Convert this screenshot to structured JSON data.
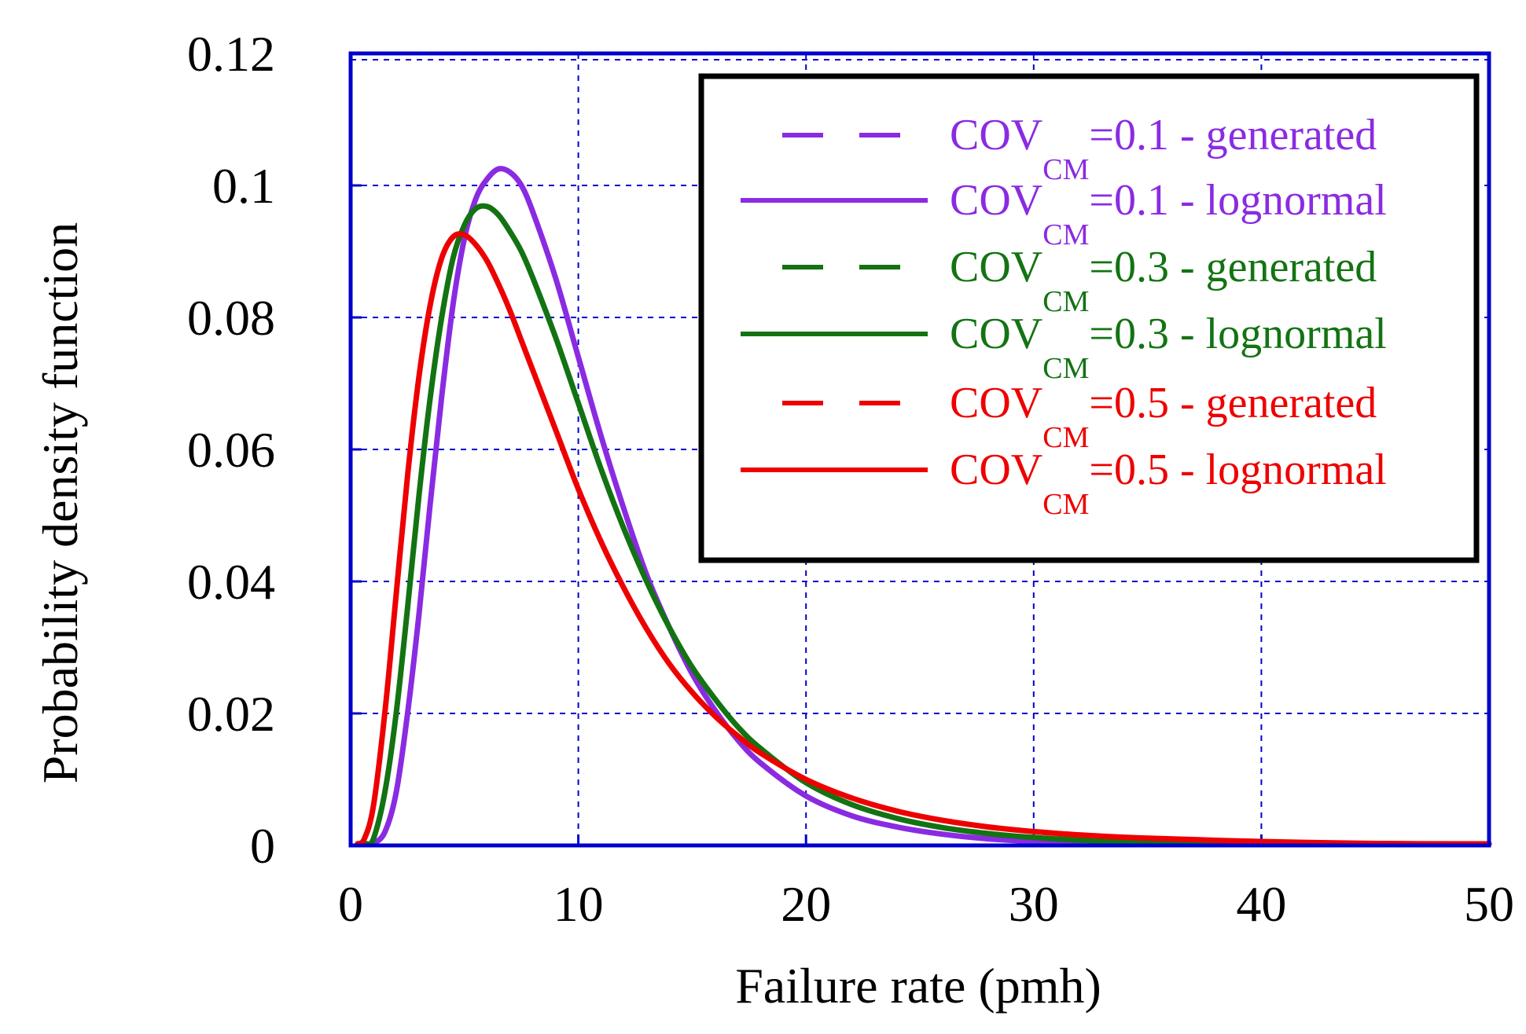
{
  "chart_data": {
    "type": "line",
    "title": "",
    "xlabel": "Failure rate (pmh)",
    "ylabel": "Probability density function",
    "xlim": [
      0,
      50
    ],
    "ylim": [
      0,
      0.12
    ],
    "x_ticks": [
      "0",
      "10",
      "20",
      "30",
      "40",
      "50"
    ],
    "y_ticks": [
      "0",
      "0.02",
      "0.04",
      "0.06",
      "0.08",
      "0.1",
      "0.12"
    ],
    "grid": true,
    "legend_position": "top-right",
    "series": [
      {
        "name": "COV_CM=0.1 - generated",
        "label_main": "COV",
        "label_sub": "CM",
        "label_rest": "=0.1 - generated",
        "style": "dashed",
        "color": "#8a2be2",
        "x": [
          1,
          1.5,
          2,
          2.5,
          3,
          3.5,
          4,
          4.5,
          5,
          5.5,
          6,
          6.5,
          7,
          7.5,
          8,
          9,
          10,
          11,
          12,
          13,
          14,
          15,
          16,
          17,
          18,
          20,
          22,
          24,
          26,
          28,
          30,
          32,
          35,
          40,
          45,
          50
        ],
        "values": [
          0.0,
          0.002,
          0.008,
          0.02,
          0.035,
          0.052,
          0.068,
          0.082,
          0.092,
          0.098,
          0.101,
          0.1025,
          0.102,
          0.1,
          0.096,
          0.086,
          0.074,
          0.062,
          0.051,
          0.041,
          0.033,
          0.026,
          0.0205,
          0.016,
          0.0125,
          0.0075,
          0.0045,
          0.0028,
          0.0017,
          0.001,
          0.0006,
          0.0004,
          0.0002,
          0.0001,
          3e-05,
          0.0
        ]
      },
      {
        "name": "COV_CM=0.1 - lognormal",
        "label_main": "COV",
        "label_sub": "CM",
        "label_rest": "=0.1 - lognormal",
        "style": "solid",
        "color": "#8a2be2",
        "x": [
          1,
          1.5,
          2,
          2.5,
          3,
          3.5,
          4,
          4.5,
          5,
          5.5,
          6,
          6.5,
          7,
          7.5,
          8,
          9,
          10,
          11,
          12,
          13,
          14,
          15,
          16,
          17,
          18,
          20,
          22,
          24,
          26,
          28,
          30,
          32,
          35,
          40,
          45,
          50
        ],
        "values": [
          0.0,
          0.002,
          0.008,
          0.02,
          0.035,
          0.052,
          0.068,
          0.082,
          0.092,
          0.098,
          0.101,
          0.1025,
          0.102,
          0.1,
          0.096,
          0.086,
          0.074,
          0.062,
          0.051,
          0.041,
          0.033,
          0.026,
          0.0205,
          0.016,
          0.0125,
          0.0075,
          0.0045,
          0.0028,
          0.0017,
          0.001,
          0.0006,
          0.0004,
          0.0002,
          0.0001,
          3e-05,
          0.0
        ]
      },
      {
        "name": "COV_CM=0.3 - generated",
        "label_main": "COV",
        "label_sub": "CM",
        "label_rest": "=0.3 - generated",
        "style": "dashed",
        "color": "#137313",
        "x": [
          0.7,
          1,
          1.5,
          2,
          2.5,
          3,
          3.5,
          4,
          4.5,
          5,
          5.5,
          6,
          6.5,
          7,
          7.5,
          8,
          9,
          10,
          11,
          12,
          13,
          14,
          15,
          16,
          17,
          18,
          20,
          22,
          24,
          26,
          28,
          30,
          32,
          35,
          40,
          45,
          50
        ],
        "values": [
          0.0,
          0.001,
          0.008,
          0.02,
          0.036,
          0.053,
          0.068,
          0.08,
          0.089,
          0.094,
          0.0965,
          0.0968,
          0.0955,
          0.093,
          0.09,
          0.086,
          0.077,
          0.067,
          0.057,
          0.048,
          0.04,
          0.033,
          0.027,
          0.0222,
          0.018,
          0.0147,
          0.0095,
          0.0062,
          0.0041,
          0.0027,
          0.0018,
          0.0012,
          0.0008,
          0.0005,
          0.0002,
          0.0001,
          5e-05
        ]
      },
      {
        "name": "COV_CM=0.3 - lognormal",
        "label_main": "COV",
        "label_sub": "CM",
        "label_rest": "=0.3 - lognormal",
        "style": "solid",
        "color": "#137313",
        "x": [
          0.7,
          1,
          1.5,
          2,
          2.5,
          3,
          3.5,
          4,
          4.5,
          5,
          5.5,
          6,
          6.5,
          7,
          7.5,
          8,
          9,
          10,
          11,
          12,
          13,
          14,
          15,
          16,
          17,
          18,
          20,
          22,
          24,
          26,
          28,
          30,
          32,
          35,
          40,
          45,
          50
        ],
        "values": [
          0.0,
          0.001,
          0.008,
          0.02,
          0.036,
          0.053,
          0.068,
          0.08,
          0.089,
          0.094,
          0.0965,
          0.0968,
          0.0955,
          0.093,
          0.09,
          0.086,
          0.077,
          0.067,
          0.057,
          0.048,
          0.04,
          0.033,
          0.027,
          0.0222,
          0.018,
          0.0147,
          0.0095,
          0.0062,
          0.0041,
          0.0027,
          0.0018,
          0.0012,
          0.0008,
          0.0005,
          0.0002,
          0.0001,
          5e-05
        ]
      },
      {
        "name": "COV_CM=0.5 - generated",
        "label_main": "COV",
        "label_sub": "CM",
        "label_rest": "=0.5 - generated",
        "style": "dashed",
        "color": "#ee0000",
        "x": [
          0.3,
          0.6,
          1,
          1.5,
          2,
          2.5,
          3,
          3.5,
          4,
          4.5,
          5,
          5.5,
          6,
          6.5,
          7,
          7.5,
          8,
          9,
          10,
          11,
          12,
          13,
          14,
          15,
          16,
          17,
          18,
          20,
          22,
          24,
          26,
          28,
          30,
          32,
          35,
          40,
          45,
          50
        ],
        "values": [
          0.0,
          0.001,
          0.006,
          0.02,
          0.038,
          0.056,
          0.071,
          0.082,
          0.089,
          0.0922,
          0.0925,
          0.091,
          0.0885,
          0.085,
          0.081,
          0.0765,
          0.072,
          0.063,
          0.054,
          0.046,
          0.039,
          0.0328,
          0.0275,
          0.0232,
          0.0196,
          0.0166,
          0.014,
          0.01,
          0.0072,
          0.0052,
          0.0038,
          0.0028,
          0.0021,
          0.0016,
          0.0011,
          0.0006,
          0.0003,
          0.00015
        ]
      },
      {
        "name": "COV_CM=0.5 - lognormal",
        "label_main": "COV",
        "label_sub": "CM",
        "label_rest": "=0.5 - lognormal",
        "style": "solid",
        "color": "#ee0000",
        "x": [
          0.3,
          0.6,
          1,
          1.5,
          2,
          2.5,
          3,
          3.5,
          4,
          4.5,
          5,
          5.5,
          6,
          6.5,
          7,
          7.5,
          8,
          9,
          10,
          11,
          12,
          13,
          14,
          15,
          16,
          17,
          18,
          20,
          22,
          24,
          26,
          28,
          30,
          32,
          35,
          40,
          45,
          50
        ],
        "values": [
          0.0,
          0.001,
          0.006,
          0.02,
          0.038,
          0.056,
          0.071,
          0.082,
          0.089,
          0.0922,
          0.0925,
          0.091,
          0.0885,
          0.085,
          0.081,
          0.0765,
          0.072,
          0.063,
          0.054,
          0.046,
          0.039,
          0.0328,
          0.0275,
          0.0232,
          0.0196,
          0.0166,
          0.014,
          0.01,
          0.0072,
          0.0052,
          0.0038,
          0.0028,
          0.0021,
          0.0016,
          0.0011,
          0.0006,
          0.0003,
          0.00015
        ]
      }
    ],
    "colors": {
      "frame": "#0000cc",
      "grid": "#0000cc",
      "legend_border": "#000000"
    }
  }
}
